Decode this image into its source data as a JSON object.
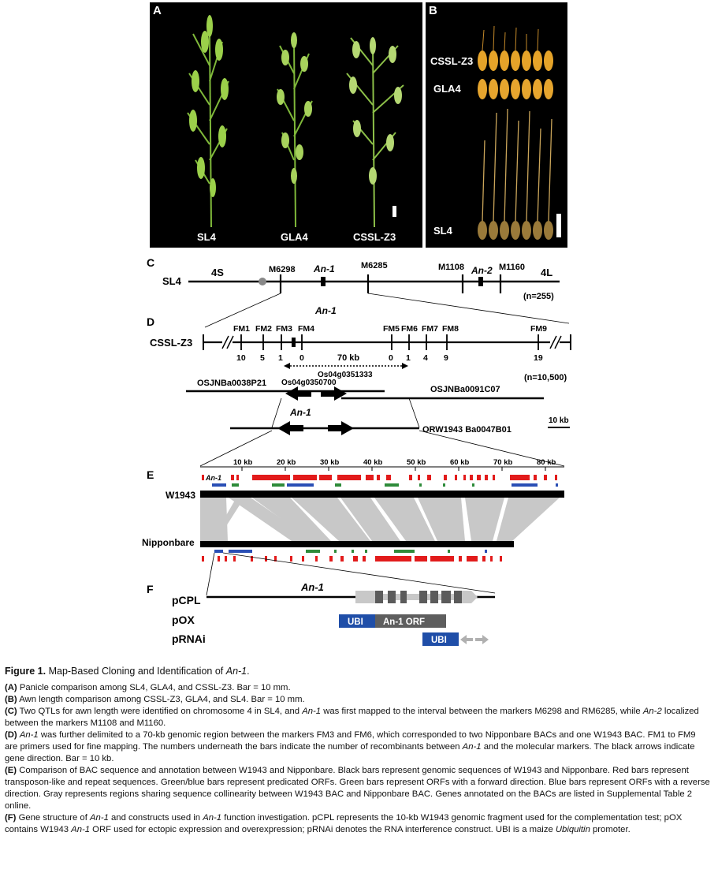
{
  "panelA": {
    "letter": "A",
    "labels": [
      "SL4",
      "GLA4",
      "CSSL-Z3"
    ]
  },
  "panelB": {
    "letter": "B",
    "labels": [
      "CSSL-Z3",
      "GLA4",
      "SL4"
    ]
  },
  "panelC": {
    "letter": "C",
    "chrom": "SL4",
    "arm_left": "4S",
    "arm_right": "4L",
    "markers": [
      "M6298",
      "M6285",
      "M1108",
      "M1160"
    ],
    "genes": [
      "An-1",
      "An-2"
    ],
    "n": "(n=255)"
  },
  "panelD": {
    "letter": "D",
    "gene": "An-1",
    "line": "CSSL-Z3",
    "markers": [
      "FM1",
      "FM2",
      "FM3",
      "FM4",
      "FM5",
      "FM6",
      "FM7",
      "FM8",
      "FM9"
    ],
    "recombinants": [
      "10",
      "5",
      "1",
      "0",
      "0",
      "1",
      "4",
      "9",
      "19"
    ],
    "interval": "70 kb",
    "n": "(n=10,500)",
    "bacs": [
      "OSJNBa0038P21",
      "OSJNBa0091C07"
    ],
    "orfs": [
      "Os04g0350700",
      "Os04g0351333"
    ],
    "gene2": "An-1",
    "bac_w": "ORW1943 Ba0047B01",
    "scale": "10 kb"
  },
  "panelE": {
    "letter": "E",
    "ticks": [
      "10 kb",
      "20 kb",
      "30 kb",
      "40 kb",
      "50 kb",
      "60 kb",
      "70 kb",
      "80 kb"
    ],
    "gene": "An-1",
    "top": "W1943",
    "bottom": "Nipponbare"
  },
  "panelF": {
    "letter": "F",
    "constructs": [
      "pCPL",
      "pOX",
      "pRNAi"
    ],
    "gene": "An-1",
    "ubi": "UBI",
    "orf": "An-1 ORF"
  },
  "caption": {
    "title_prefix": "Figure 1.",
    "title_text": "Map-Based Cloning and Identification of",
    "title_gene": "An-1",
    "A_tag": "(A)",
    "A": "Panicle comparison among SL4, GLA4, and CSSL-Z3. Bar = 10 mm.",
    "B_tag": "(B)",
    "B": "Awn length comparison among CSSL-Z3, GLA4, and SL4. Bar = 10 mm.",
    "C_tag": "(C)",
    "C1": "Two QTLs for awn length were identified on chromosome 4 in SL4, and",
    "C_gene1": "An-1",
    "C2": "was first mapped to the interval between the markers M6298 and RM6285, while",
    "C_gene2": "An-2",
    "C3": "localized between the markers M1108 and M1160.",
    "D_tag": "(D)",
    "D_gene1": "An-1",
    "D1": "was further delimited to a 70-kb genomic region between the markers FM3 and FM6, which corresponded to two Nipponbare BACs and one W1943 BAC. FM1 to FM9 are primers used for fine mapping. The numbers underneath the bars indicate the number of recombinants between",
    "D_gene2": "An-1",
    "D2": "and the molecular markers. The black arrows indicate gene direction. Bar = 10 kb.",
    "E_tag": "(E)",
    "E": "Comparison of BAC sequence and annotation between W1943 and Nipponbare. Black bars represent genomic sequences of W1943 and Nipponbare. Red bars represent transposon-like and repeat sequences. Green/blue bars represent predicated ORFs. Green bars represent ORFs with a forward direction. Blue bars represent ORFs with a reverse direction. Gray represents regions sharing sequence collinearity between W1943 BAC and Nipponbare BAC. Genes annotated on the BACs are listed in Supplemental Table 2 online.",
    "F_tag": "(F)",
    "F1": "Gene structure of",
    "F_gene1": "An-1",
    "F2": "and constructs used in",
    "F_gene2": "An-1",
    "F3": "function investigation. pCPL represents the 10-kb W1943 genomic fragment used for the complementation test; pOX contains W1943",
    "F_gene3": "An-1",
    "F4": "ORF used for ectopic expression and overexpression; pRNAi denotes the RNA interference construct. UBI is a maize",
    "F_ubq": "Ubiquitin",
    "F5": "promoter."
  }
}
